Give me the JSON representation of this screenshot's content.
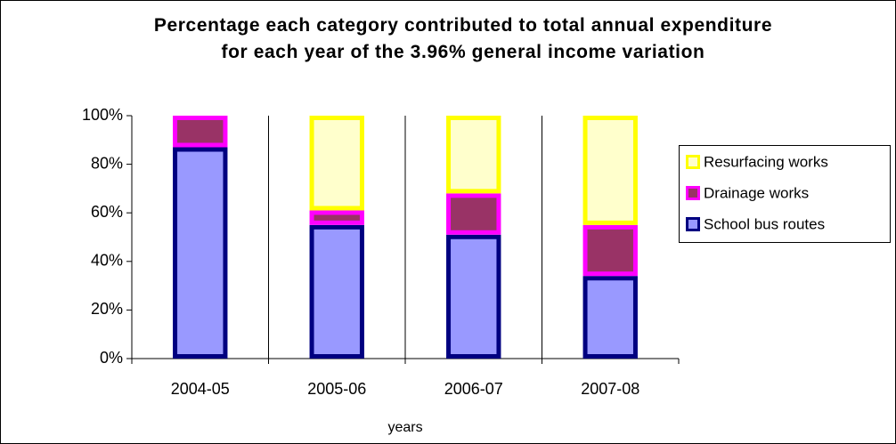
{
  "chart_data": {
    "type": "stacked_bar_percent",
    "title": "Percentage each category contributed to total annual expenditure for each year of the 3.96% general income variation",
    "xlabel": "years",
    "categories": [
      "2004-05",
      "2005-06",
      "2006-07",
      "2007-08"
    ],
    "series": [
      {
        "name": "School bus routes",
        "color": "#9999ff",
        "edge_color": "#000080",
        "values": [
          87,
          55,
          51,
          34
        ]
      },
      {
        "name": "Drainage works",
        "color": "#993366",
        "edge_color": "#ff00ff",
        "values": [
          13,
          6,
          17,
          21
        ]
      },
      {
        "name": "Resurfacing works",
        "color": "#ffffcc",
        "edge_color": "#ffff00",
        "values": [
          0,
          39,
          32,
          45
        ]
      }
    ],
    "ylim": [
      0,
      100
    ],
    "yticks": [
      {
        "value": 0,
        "label": "0%"
      },
      {
        "value": 20,
        "label": "20%"
      },
      {
        "value": 40,
        "label": "40%"
      },
      {
        "value": 60,
        "label": "60%"
      },
      {
        "value": 80,
        "label": "80%"
      },
      {
        "value": 100,
        "label": "100%"
      }
    ],
    "grid": "x",
    "legend": "right"
  }
}
